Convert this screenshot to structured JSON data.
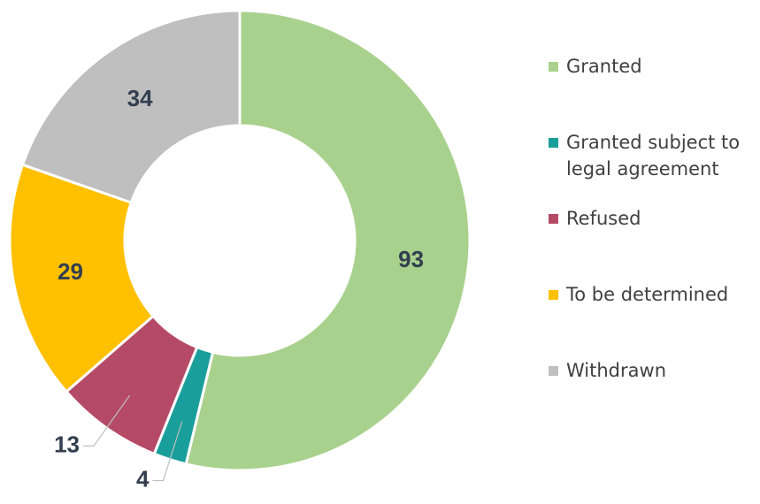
{
  "chart_data": {
    "type": "donut",
    "categories": [
      "Granted",
      "Granted subject to legal agreement",
      "Refused",
      "To be determined",
      "Withdrawn"
    ],
    "values": [
      93,
      4,
      13,
      29,
      34
    ],
    "colors": [
      "#a9d18e",
      "#1a9e9b",
      "#b54a66",
      "#ffc000",
      "#bfbfbf"
    ],
    "legend": "right"
  }
}
